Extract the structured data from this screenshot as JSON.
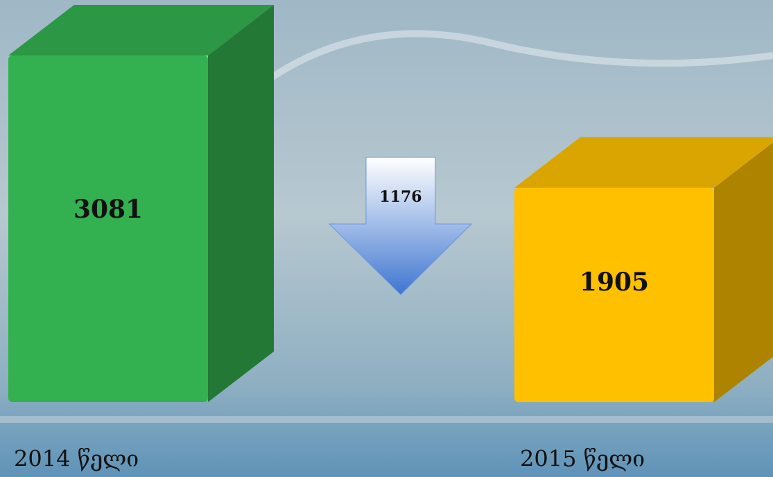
{
  "chart_data": {
    "type": "bar3d",
    "categories": [
      "2014 წელი",
      "2015 წელი"
    ],
    "values": [
      3081,
      1905
    ],
    "colors": [
      "#33b050",
      "#ffc000"
    ],
    "annotations": [
      "1176"
    ]
  }
}
